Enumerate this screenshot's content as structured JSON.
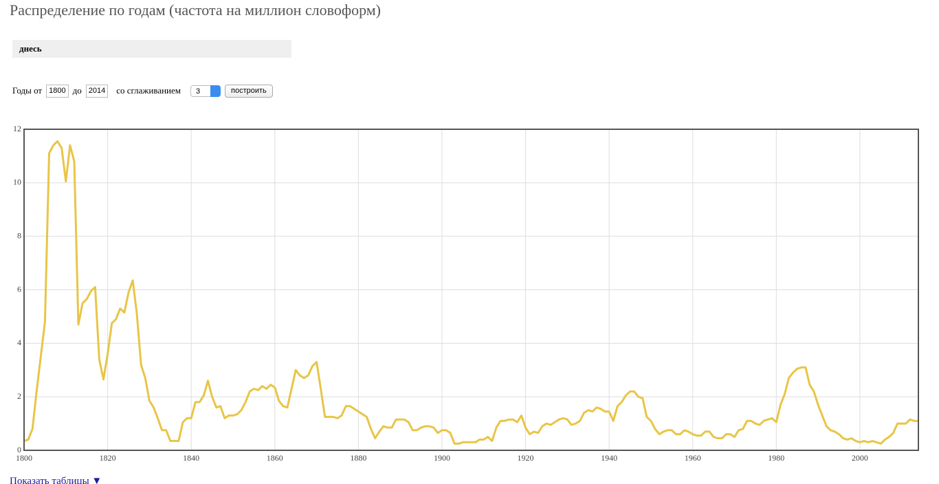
{
  "header": {
    "title": "Распределение по годам (частота на миллион словоформ)"
  },
  "query": {
    "word": "днесь"
  },
  "form": {
    "years_from_label": "Годы от",
    "year_from": "1800",
    "to_label": "до",
    "year_to": "2014",
    "smoothing_label": "со сглаживанием",
    "smoothing": "3",
    "button": "построить"
  },
  "footer": {
    "link": "Показать таблицы ▼"
  },
  "chart_data": {
    "type": "line",
    "color": "#e8c547",
    "grid": true,
    "xlim": [
      1800,
      2014
    ],
    "ylim": [
      0,
      12
    ],
    "xticks": [
      1800,
      1820,
      1840,
      1860,
      1880,
      1900,
      1920,
      1940,
      1960,
      1980,
      2000
    ],
    "yticks": [
      0,
      2,
      4,
      6,
      8,
      10,
      12
    ],
    "x": [
      1800,
      1801,
      1802,
      1803,
      1804,
      1805,
      1806,
      1807,
      1808,
      1809,
      1810,
      1811,
      1812,
      1813,
      1814,
      1815,
      1816,
      1817,
      1818,
      1819,
      1820,
      1821,
      1822,
      1823,
      1824,
      1825,
      1826,
      1827,
      1828,
      1829,
      1830,
      1831,
      1832,
      1833,
      1834,
      1835,
      1836,
      1837,
      1838,
      1839,
      1840,
      1841,
      1842,
      1843,
      1844,
      1845,
      1846,
      1847,
      1848,
      1849,
      1850,
      1851,
      1852,
      1853,
      1854,
      1855,
      1856,
      1857,
      1858,
      1859,
      1860,
      1861,
      1862,
      1863,
      1864,
      1865,
      1866,
      1867,
      1868,
      1869,
      1870,
      1871,
      1872,
      1873,
      1874,
      1875,
      1876,
      1877,
      1878,
      1879,
      1880,
      1881,
      1882,
      1883,
      1884,
      1885,
      1886,
      1887,
      1888,
      1889,
      1890,
      1891,
      1892,
      1893,
      1894,
      1895,
      1896,
      1897,
      1898,
      1899,
      1900,
      1901,
      1902,
      1903,
      1904,
      1905,
      1906,
      1907,
      1908,
      1909,
      1910,
      1911,
      1912,
      1913,
      1914,
      1915,
      1916,
      1917,
      1918,
      1919,
      1920,
      1921,
      1922,
      1923,
      1924,
      1925,
      1926,
      1927,
      1928,
      1929,
      1930,
      1931,
      1932,
      1933,
      1934,
      1935,
      1936,
      1937,
      1938,
      1939,
      1940,
      1941,
      1942,
      1943,
      1944,
      1945,
      1946,
      1947,
      1948,
      1949,
      1950,
      1951,
      1952,
      1953,
      1954,
      1955,
      1956,
      1957,
      1958,
      1959,
      1960,
      1961,
      1962,
      1963,
      1964,
      1965,
      1966,
      1967,
      1968,
      1969,
      1970,
      1971,
      1972,
      1973,
      1974,
      1975,
      1976,
      1977,
      1978,
      1979,
      1980,
      1981,
      1982,
      1983,
      1984,
      1985,
      1986,
      1987,
      1988,
      1989,
      1990,
      1991,
      1992,
      1993,
      1994,
      1995,
      1996,
      1997,
      1998,
      1999,
      2000,
      2001,
      2002,
      2003,
      2004,
      2005,
      2006,
      2007,
      2008,
      2009,
      2010,
      2011,
      2012,
      2013,
      2014
    ],
    "values": [
      0.35,
      0.4,
      0.8,
      2.2,
      3.5,
      4.8,
      11.1,
      11.4,
      11.55,
      11.3,
      10.05,
      11.4,
      10.8,
      4.7,
      5.5,
      5.65,
      5.95,
      6.1,
      3.4,
      2.65,
      3.6,
      4.75,
      4.9,
      5.3,
      5.15,
      5.9,
      6.35,
      5.1,
      3.2,
      2.7,
      1.85,
      1.6,
      1.2,
      0.75,
      0.75,
      0.35,
      0.35,
      0.35,
      1.05,
      1.2,
      1.2,
      1.8,
      1.8,
      2.05,
      2.6,
      2.0,
      1.6,
      1.65,
      1.2,
      1.3,
      1.3,
      1.35,
      1.5,
      1.8,
      2.2,
      2.3,
      2.25,
      2.4,
      2.3,
      2.45,
      2.35,
      1.85,
      1.65,
      1.6,
      2.3,
      3.0,
      2.8,
      2.7,
      2.8,
      3.15,
      3.3,
      2.3,
      1.25,
      1.25,
      1.25,
      1.2,
      1.3,
      1.65,
      1.65,
      1.55,
      1.45,
      1.35,
      1.25,
      0.8,
      0.45,
      0.7,
      0.9,
      0.85,
      0.85,
      1.15,
      1.15,
      1.15,
      1.05,
      0.75,
      0.75,
      0.85,
      0.9,
      0.9,
      0.85,
      0.65,
      0.75,
      0.75,
      0.65,
      0.25,
      0.25,
      0.3,
      0.3,
      0.3,
      0.3,
      0.4,
      0.4,
      0.5,
      0.35,
      0.85,
      1.1,
      1.1,
      1.15,
      1.15,
      1.05,
      1.3,
      0.85,
      0.6,
      0.7,
      0.65,
      0.9,
      1.0,
      0.95,
      1.05,
      1.15,
      1.2,
      1.15,
      0.95,
      1.0,
      1.1,
      1.4,
      1.5,
      1.45,
      1.6,
      1.55,
      1.45,
      1.45,
      1.1,
      1.65,
      1.8,
      2.05,
      2.2,
      2.2,
      2.0,
      1.95,
      1.25,
      1.1,
      0.8,
      0.6,
      0.7,
      0.75,
      0.75,
      0.6,
      0.6,
      0.75,
      0.7,
      0.6,
      0.55,
      0.55,
      0.7,
      0.7,
      0.5,
      0.45,
      0.45,
      0.6,
      0.6,
      0.5,
      0.75,
      0.8,
      1.1,
      1.1,
      1.0,
      0.95,
      1.1,
      1.15,
      1.2,
      1.05,
      1.7,
      2.1,
      2.7,
      2.9,
      3.05,
      3.1,
      3.1,
      2.45,
      2.2,
      1.7,
      1.3,
      0.9,
      0.75,
      0.7,
      0.6,
      0.45,
      0.4,
      0.45,
      0.35,
      0.3,
      0.35,
      0.3,
      0.35,
      0.3,
      0.25,
      0.4,
      0.5,
      0.65,
      1.0,
      1.0,
      1.0,
      1.15,
      1.1,
      1.1
    ]
  }
}
